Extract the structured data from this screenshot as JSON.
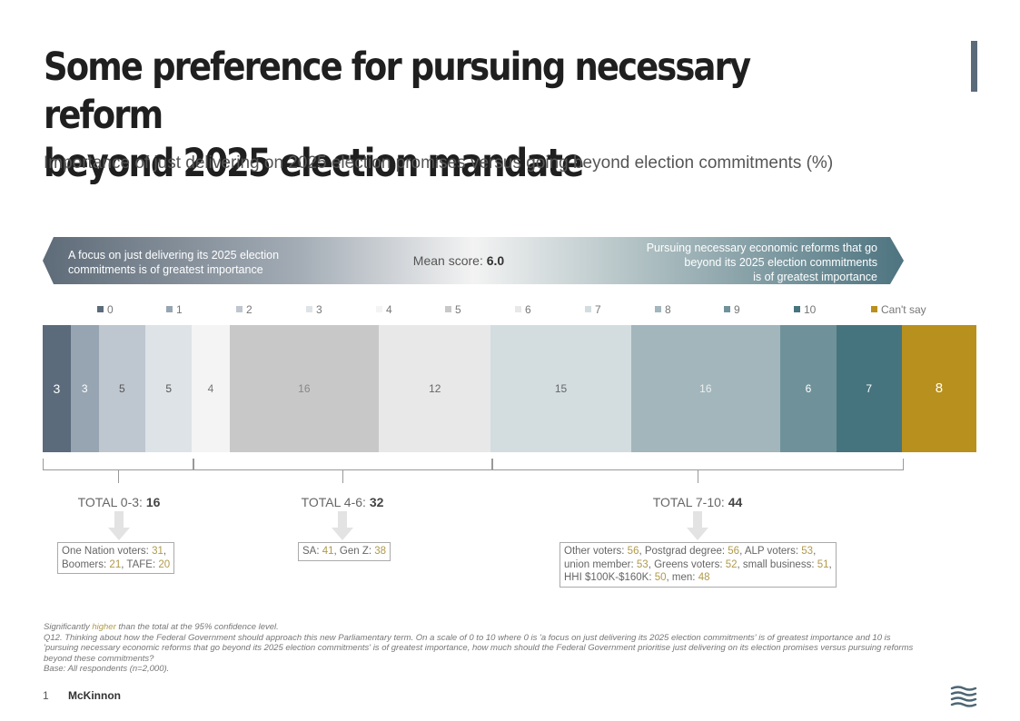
{
  "header": {
    "title_line1": "Some preference for pursuing necessary reform",
    "title_line2": "beyond 2025 election mandate",
    "subtitle": "Importance of just delivering on 2025 election promises versus going beyond election commitments (%)"
  },
  "banner": {
    "left_line1": "A focus on just delivering its 2025 election",
    "left_line2": "commitments is of greatest importance",
    "right_line1": "Pursuing necessary economic reforms that go",
    "right_line2": "beyond its 2025 election commitments",
    "right_line3": "is of greatest importance",
    "mean_label": "Mean score: ",
    "mean_value": "6.0"
  },
  "chart_data": {
    "type": "bar",
    "orientation": "horizontal-stacked-100",
    "categories": [
      "0",
      "1",
      "2",
      "3",
      "4",
      "5",
      "6",
      "7",
      "8",
      "9",
      "10",
      "Can't say"
    ],
    "values": [
      3,
      3,
      5,
      5,
      4,
      16,
      12,
      15,
      16,
      6,
      7,
      8
    ],
    "colors": [
      "#5b6b7b",
      "#97a5b2",
      "#bec6cf",
      "#dde3e7",
      "#f4f4f4",
      "#c8c8c8",
      "#e8e8e8",
      "#d3dde0",
      "#a2b6bc",
      "#6f929a",
      "#46747e",
      "#b8901e"
    ],
    "label_colors": [
      "#ffffff",
      "#ffffff",
      "#555555",
      "#555555",
      "#777777",
      "#888888",
      "#666666",
      "#666666",
      "#eeeeee",
      "#ffffff",
      "#ffffff",
      "#ffffff"
    ],
    "totals": [
      {
        "label": "TOTAL 0-3: ",
        "value": "16",
        "callout": [
          [
            {
              "t": "One Nation voters: "
            },
            {
              "t": "31",
              "hl": true
            },
            {
              "t": ","
            }
          ],
          [
            {
              "t": "Boomers: "
            },
            {
              "t": "21",
              "hl": true
            },
            {
              "t": ", TAFE: "
            },
            {
              "t": "20",
              "hl": true
            }
          ]
        ]
      },
      {
        "label": "TOTAL 4-6: ",
        "value": "32",
        "callout": [
          [
            {
              "t": "SA: "
            },
            {
              "t": "41",
              "hl": true
            },
            {
              "t": ", Gen Z: "
            },
            {
              "t": "38",
              "hl": true
            }
          ]
        ]
      },
      {
        "label": "TOTAL 7-10: ",
        "value": "44",
        "callout": [
          [
            {
              "t": "Other voters: "
            },
            {
              "t": "56",
              "hl": true
            },
            {
              "t": ", Postgrad degree: "
            },
            {
              "t": "56",
              "hl": true
            },
            {
              "t": ", ALP voters: "
            },
            {
              "t": "53",
              "hl": true
            },
            {
              "t": ","
            }
          ],
          [
            {
              "t": "union member: "
            },
            {
              "t": "53",
              "hl": true
            },
            {
              "t": ", Greens voters: "
            },
            {
              "t": "52",
              "hl": true
            },
            {
              "t": ", small business: "
            },
            {
              "t": "51",
              "hl": true
            },
            {
              "t": ","
            }
          ],
          [
            {
              "t": "HHI $100K-$160K: "
            },
            {
              "t": "50",
              "hl": true
            },
            {
              "t": ", men: "
            },
            {
              "t": "48",
              "hl": true
            }
          ]
        ]
      }
    ]
  },
  "notes": {
    "sig_pre": "Significantly ",
    "sig_word": "higher",
    "sig_post": " than the total at the 95% confidence level.",
    "question": "Q12. Thinking about how the Federal Government should approach this new Parliamentary term. On a scale of 0 to 10 where 0 is 'a focus on just delivering its 2025 election commitments' is of greatest importance and 10 is 'pursuing necessary economic reforms that go beyond its 2025 election commitments' is of greatest importance, how much should the Federal Government prioritise just delivering on its election promises versus pursuing reforms beyond these commitments?",
    "base": "Base: All respondents (n=2,000)."
  },
  "footer": {
    "page_number": "1",
    "brand": "McKinnon",
    "logo_icon": "wave-flag-icon"
  }
}
